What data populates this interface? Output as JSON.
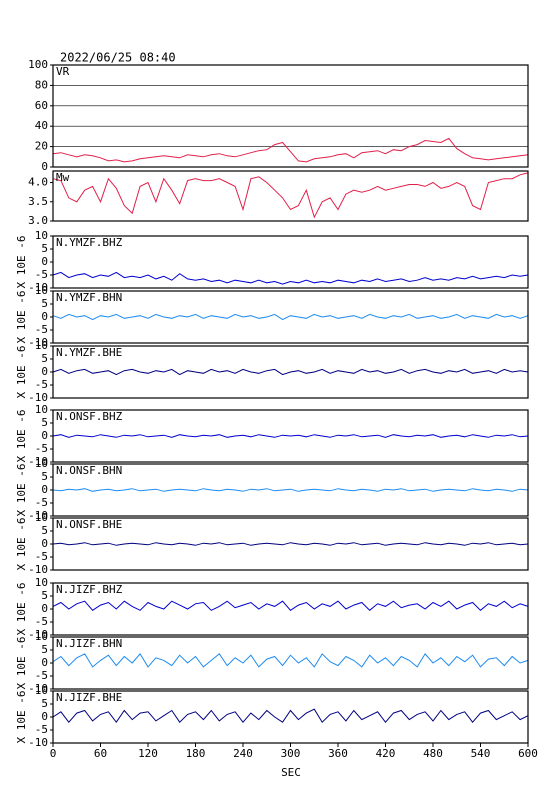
{
  "chart_data": {
    "type": "line",
    "title": "2022/06/25 08:40",
    "xlabel": "SEC",
    "xlim": [
      0,
      600
    ],
    "xticks": [
      0,
      60,
      120,
      180,
      240,
      300,
      360,
      420,
      480,
      540,
      600
    ],
    "x": [
      0,
      10,
      20,
      30,
      40,
      50,
      60,
      70,
      80,
      90,
      100,
      110,
      120,
      130,
      140,
      150,
      160,
      170,
      180,
      190,
      200,
      210,
      220,
      230,
      240,
      250,
      260,
      270,
      280,
      290,
      300,
      310,
      320,
      330,
      340,
      350,
      360,
      370,
      380,
      390,
      400,
      410,
      420,
      430,
      440,
      450,
      460,
      470,
      480,
      490,
      500,
      510,
      520,
      530,
      540,
      550,
      560,
      570,
      580,
      590,
      600
    ],
    "panels": [
      {
        "ylim": [
          0,
          100
        ],
        "yticks": [
          0,
          20,
          40,
          60,
          80,
          100
        ],
        "grid": true,
        "series": [
          {
            "name": "VR",
            "color": "#e0204a",
            "values": [
              13,
              14,
              12,
              10,
              12,
              11,
              9,
              6,
              7,
              5,
              6,
              8,
              9,
              10,
              11,
              10,
              9,
              12,
              11,
              10,
              12,
              13,
              11,
              10,
              12,
              14,
              16,
              17,
              22,
              24,
              15,
              6,
              5,
              8,
              9,
              10,
              12,
              13,
              9,
              14,
              15,
              16,
              13,
              17,
              16,
              20,
              22,
              26,
              25,
              24,
              28,
              18,
              13,
              9,
              8,
              7,
              8,
              9,
              10,
              11,
              12
            ]
          }
        ]
      },
      {
        "ylim": [
          3,
          4.3
        ],
        "yticks": [
          {
            "value": 3,
            "label": "3.0"
          },
          3.5,
          {
            "value": 4,
            "label": "4.0"
          }
        ],
        "grid": false,
        "series": [
          {
            "name": "Mw",
            "color": "#e0204a",
            "values": [
              4.1,
              4.05,
              3.6,
              3.5,
              3.8,
              3.9,
              3.5,
              4.1,
              3.85,
              3.4,
              3.2,
              3.9,
              4.0,
              3.5,
              4.1,
              3.8,
              3.45,
              4.05,
              4.1,
              4.05,
              4.05,
              4.1,
              4.0,
              3.9,
              3.3,
              4.1,
              4.15,
              4.0,
              3.8,
              3.6,
              3.3,
              3.4,
              3.8,
              3.1,
              3.5,
              3.6,
              3.3,
              3.7,
              3.8,
              3.75,
              3.8,
              3.9,
              3.8,
              3.85,
              3.9,
              3.95,
              3.95,
              3.9,
              4.0,
              3.85,
              3.9,
              4.0,
              3.9,
              3.4,
              3.3,
              4.0,
              4.05,
              4.1,
              4.1,
              4.2,
              4.25
            ]
          }
        ]
      },
      {
        "ylabel": "X 10E -6",
        "ylim": [
          -10,
          10
        ],
        "yticks": [
          -10,
          -5,
          0,
          5,
          10
        ],
        "grid": false,
        "series": [
          {
            "name": "N.YMZF.BHZ",
            "color": "#0000d0",
            "values": [
              -5,
              -4,
              -6,
              -5,
              -4.5,
              -6,
              -5,
              -5.5,
              -4,
              -6,
              -5.5,
              -6,
              -5,
              -6.5,
              -5.5,
              -7,
              -4.5,
              -6.5,
              -7,
              -6.5,
              -7.5,
              -7,
              -8,
              -7,
              -7.5,
              -8,
              -7,
              -8,
              -7.5,
              -8.5,
              -7.5,
              -8,
              -7,
              -8,
              -7.5,
              -8,
              -7,
              -7.5,
              -8,
              -7,
              -7.5,
              -6.5,
              -7.5,
              -7,
              -6.5,
              -7.5,
              -7,
              -6,
              -7,
              -6.5,
              -7,
              -6,
              -6.5,
              -5.5,
              -6.5,
              -6,
              -5.5,
              -6,
              -5,
              -5.5,
              -5
            ]
          }
        ]
      },
      {
        "ylabel": "X 10E -6",
        "ylim": [
          -10,
          10
        ],
        "yticks": [
          -10,
          -5,
          0,
          5,
          10
        ],
        "grid": false,
        "series": [
          {
            "name": "N.YMZF.BHN",
            "color": "#1e8cf0",
            "values": [
              0.5,
              -0.5,
              1,
              0,
              0.5,
              -1,
              0.5,
              0,
              1,
              -0.5,
              0,
              0.5,
              -0.5,
              1,
              0,
              -0.5,
              0.5,
              0,
              1,
              -0.5,
              0.5,
              0,
              -0.5,
              1,
              0,
              0.5,
              -0.5,
              0,
              1,
              -1,
              0.5,
              0,
              -0.5,
              1,
              0,
              0.5,
              -0.5,
              0,
              0.5,
              -0.5,
              1,
              0,
              -0.5,
              0.5,
              0,
              1,
              -0.5,
              0,
              0.5,
              -0.5,
              0,
              1,
              -0.5,
              0.5,
              0,
              -0.5,
              1,
              0,
              0.5,
              -0.5,
              0.5
            ]
          }
        ]
      },
      {
        "ylabel": "X 10E -6",
        "ylim": [
          -10,
          10
        ],
        "yticks": [
          -10,
          -5,
          0,
          5,
          10
        ],
        "grid": false,
        "series": [
          {
            "name": "N.YMZF.BHE",
            "color": "#000080",
            "values": [
              0,
              1,
              -0.5,
              0.5,
              1,
              -0.5,
              0,
              0.5,
              -1,
              0.5,
              1,
              0,
              -0.5,
              0.5,
              0,
              1,
              -1,
              0.5,
              0,
              -0.5,
              1,
              0,
              0.5,
              -0.5,
              1,
              0,
              -0.5,
              0.5,
              1,
              -1,
              0,
              0.5,
              -0.5,
              0,
              1,
              -0.5,
              0.5,
              0,
              -0.5,
              1,
              0,
              0.5,
              -0.5,
              0,
              1,
              -0.5,
              0.5,
              1,
              0,
              -0.5,
              0.5,
              0,
              1,
              -0.5,
              0,
              0.5,
              -0.5,
              1,
              0,
              0.5,
              0
            ]
          }
        ]
      },
      {
        "ylabel": "X 10E -6",
        "ylim": [
          -10,
          10
        ],
        "yticks": [
          -10,
          -5,
          0,
          5,
          10
        ],
        "grid": false,
        "series": [
          {
            "name": "N.ONSF.BHZ",
            "color": "#0000d0",
            "values": [
              0,
              0.5,
              -0.5,
              0.3,
              0,
              -0.3,
              0.5,
              0,
              -0.5,
              0.3,
              0,
              0.5,
              -0.3,
              0,
              0.3,
              -0.5,
              0.5,
              0,
              -0.3,
              0.3,
              0,
              0.5,
              -0.5,
              0,
              0.3,
              -0.3,
              0.5,
              0,
              -0.5,
              0.3,
              0,
              0.3,
              -0.3,
              0.5,
              0,
              -0.5,
              0.3,
              0,
              0.5,
              -0.3,
              0,
              0.3,
              -0.5,
              0.5,
              0,
              -0.3,
              0.3,
              0,
              0.5,
              -0.5,
              0,
              0.3,
              -0.3,
              0.5,
              0,
              -0.5,
              0.3,
              0,
              0.5,
              -0.3,
              0
            ]
          }
        ]
      },
      {
        "ylabel": "X 10E -6",
        "ylim": [
          -10,
          10
        ],
        "yticks": [
          -10,
          -5,
          0,
          5,
          10
        ],
        "grid": false,
        "series": [
          {
            "name": "N.ONSF.BHN",
            "color": "#1e8cf0",
            "values": [
              0,
              -0.3,
              0.3,
              0,
              0.5,
              -0.5,
              0,
              0.3,
              -0.3,
              0,
              0.5,
              -0.3,
              0,
              0.3,
              -0.5,
              0,
              0.3,
              0,
              -0.3,
              0.5,
              0,
              -0.3,
              0.3,
              0,
              -0.5,
              0.3,
              0,
              0.5,
              -0.3,
              0,
              0.3,
              -0.5,
              0,
              0.3,
              0,
              -0.3,
              0.5,
              0,
              -0.3,
              0.3,
              0,
              -0.5,
              0.3,
              0,
              0.5,
              -0.3,
              0,
              0.3,
              -0.5,
              0,
              0.3,
              0,
              -0.3,
              0.5,
              0,
              -0.3,
              0.3,
              0,
              -0.5,
              0.3,
              0
            ]
          }
        ]
      },
      {
        "ylabel": "X 10E -6",
        "ylim": [
          -10,
          10
        ],
        "yticks": [
          -10,
          -5,
          0,
          5,
          10
        ],
        "grid": false,
        "series": [
          {
            "name": "N.ONSF.BHE",
            "color": "#000080",
            "values": [
              0,
              0.3,
              -0.3,
              0,
              0.5,
              -0.3,
              0,
              0.3,
              -0.5,
              0,
              0.3,
              0,
              -0.3,
              0.5,
              0,
              -0.3,
              0.3,
              0,
              -0.5,
              0.3,
              0,
              0.5,
              -0.3,
              0,
              0.3,
              -0.5,
              0,
              0.3,
              0,
              -0.3,
              0.5,
              0,
              -0.3,
              0.3,
              0,
              -0.5,
              0.3,
              0,
              0.5,
              -0.3,
              0,
              0.3,
              -0.5,
              0,
              0.3,
              0,
              -0.3,
              0.5,
              0,
              -0.3,
              0.3,
              0,
              -0.5,
              0.3,
              0,
              0.5,
              -0.3,
              0,
              0.3,
              -0.3,
              0
            ]
          }
        ]
      },
      {
        "ylabel": "X 10E -6",
        "ylim": [
          -10,
          10
        ],
        "yticks": [
          -10,
          -5,
          0,
          5,
          10
        ],
        "grid": false,
        "series": [
          {
            "name": "N.JIZF.BHZ",
            "color": "#0000d0",
            "values": [
              1,
              2.5,
              0,
              2,
              3,
              -0.5,
              1.5,
              2.5,
              0,
              3,
              1,
              -0.5,
              2.5,
              1,
              0,
              3,
              1.5,
              0,
              2,
              2.5,
              -0.5,
              1,
              3,
              0.5,
              1.5,
              2.5,
              0,
              2,
              1,
              3,
              -0.5,
              1.5,
              2.5,
              0,
              2,
              1,
              3,
              0,
              1.5,
              2.5,
              -0.5,
              2,
              1,
              3,
              0.5,
              1.5,
              2,
              0,
              2.5,
              1,
              3,
              0,
              1.5,
              2.5,
              -0.5,
              2,
              1,
              3,
              0.5,
              2,
              1
            ]
          }
        ]
      },
      {
        "ylabel": "X 10E -6",
        "ylim": [
          -10,
          10
        ],
        "yticks": [
          -10,
          -5,
          0,
          5,
          10
        ],
        "grid": false,
        "series": [
          {
            "name": "N.JIZF.BHN",
            "color": "#1e8cf0",
            "values": [
              0.5,
              2.5,
              -1,
              2,
              3.5,
              -1.5,
              1,
              3,
              -1,
              2.5,
              0,
              3.5,
              -1.5,
              2,
              1,
              -1,
              3,
              0,
              2.5,
              -1.5,
              1,
              3.5,
              -1,
              2,
              0,
              3,
              -1.5,
              1.5,
              2.5,
              -1,
              3,
              0,
              2,
              -1.5,
              3.5,
              0.5,
              -1,
              2.5,
              1,
              -1.5,
              3,
              0,
              2,
              -1,
              2.5,
              1,
              -1.5,
              3.5,
              0,
              2,
              -1,
              2.5,
              0.5,
              3,
              -1.5,
              1.5,
              2,
              -1,
              2.5,
              0,
              1
            ]
          }
        ]
      },
      {
        "ylabel": "X 10E -6",
        "ylim": [
          -10,
          10
        ],
        "yticks": [
          -10,
          -5,
          0,
          5,
          10
        ],
        "grid": false,
        "series": [
          {
            "name": "N.JIZF.BHE",
            "color": "#000080",
            "values": [
              0,
              2,
              -2,
              1.5,
              2.5,
              -1.5,
              1,
              2,
              -2,
              2.5,
              -1,
              1.5,
              2,
              -1.5,
              0.5,
              2.5,
              -2,
              1,
              2,
              -1,
              2.5,
              -1.5,
              1,
              2,
              -2,
              1.5,
              -1,
              2.5,
              0,
              -2,
              2.5,
              -1,
              1.5,
              3,
              -2,
              1,
              2,
              -1.5,
              2.5,
              -1,
              0.5,
              2,
              -2,
              1.5,
              2.5,
              -1,
              1,
              2,
              -1.5,
              2.5,
              -1,
              1,
              2,
              -2,
              1.5,
              2.5,
              -1,
              0.5,
              2,
              -1,
              0.5
            ]
          }
        ]
      }
    ]
  }
}
